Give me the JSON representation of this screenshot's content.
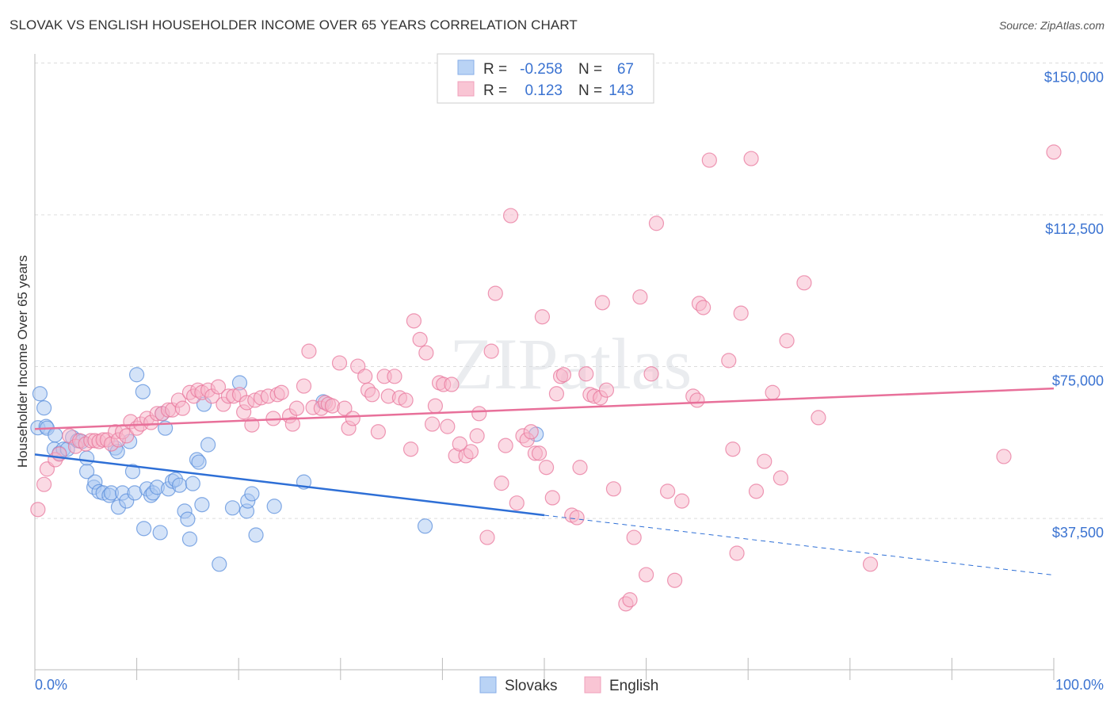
{
  "title": "SLOVAK VS ENGLISH HOUSEHOLDER INCOME OVER 65 YEARS CORRELATION CHART",
  "source": "Source: ZipAtlas.com",
  "watermark": "ZIPatlas",
  "chart_data": {
    "type": "scatter",
    "title": "SLOVAK VS ENGLISH HOUSEHOLDER INCOME OVER 65 YEARS CORRELATION CHART",
    "xlabel": "",
    "ylabel": "Householder Income Over 65 years",
    "xlim": [
      0,
      100
    ],
    "ylim_thousands": [
      0,
      150
    ],
    "x_tick_labels": {
      "left": "0.0%",
      "right": "100.0%"
    },
    "y_ticks": [
      {
        "value": 150,
        "label": "$150,000"
      },
      {
        "value": 112.5,
        "label": "$112,500"
      },
      {
        "value": 75,
        "label": "$75,000"
      },
      {
        "value": 37.5,
        "label": "$37,500"
      }
    ],
    "grid": true,
    "legend": {
      "placement": "top-center",
      "rows": [
        {
          "r_label": "R =",
          "r": "-0.258",
          "n_label": "N =",
          "n": "67"
        },
        {
          "r_label": "R =",
          "r": "0.123",
          "n_label": "N =",
          "n": "143"
        }
      ]
    },
    "series": [
      {
        "name": "Slovaks",
        "color": "#5b8fdc",
        "fill": "#a9c8f2",
        "trend": {
          "start": [
            0,
            53.3
          ],
          "solid_end": [
            50,
            38.3
          ],
          "end": [
            100,
            23.5
          ]
        },
        "points": [
          [
            0.3,
            59.9
          ],
          [
            0.5,
            68.3
          ],
          [
            0.9,
            64.8
          ],
          [
            1.1,
            60.2
          ],
          [
            1.2,
            59.8
          ],
          [
            2.0,
            58.1
          ],
          [
            1.9,
            54.6
          ],
          [
            2.4,
            53.6
          ],
          [
            2.8,
            54.6
          ],
          [
            3.2,
            54.6
          ],
          [
            3.7,
            57.5
          ],
          [
            4.2,
            56.7
          ],
          [
            4.6,
            56.5
          ],
          [
            5.1,
            52.4
          ],
          [
            5.1,
            49.1
          ],
          [
            5.8,
            45.2
          ],
          [
            5.9,
            46.5
          ],
          [
            6.3,
            44.1
          ],
          [
            6.7,
            43.8
          ],
          [
            7.3,
            43.2
          ],
          [
            7.5,
            43.8
          ],
          [
            7.9,
            54.9
          ],
          [
            8.1,
            54.0
          ],
          [
            8.2,
            40.3
          ],
          [
            8.6,
            43.8
          ],
          [
            9.0,
            41.8
          ],
          [
            9.3,
            56.5
          ],
          [
            9.6,
            49.1
          ],
          [
            9.8,
            43.8
          ],
          [
            10.0,
            73.0
          ],
          [
            10.6,
            68.8
          ],
          [
            10.7,
            35.0
          ],
          [
            11.0,
            44.8
          ],
          [
            11.4,
            43.2
          ],
          [
            11.6,
            43.8
          ],
          [
            12.0,
            45.2
          ],
          [
            12.3,
            34.0
          ],
          [
            12.5,
            63.4
          ],
          [
            12.8,
            59.8
          ],
          [
            13.1,
            44.8
          ],
          [
            13.5,
            46.7
          ],
          [
            13.8,
            47.1
          ],
          [
            14.2,
            45.7
          ],
          [
            14.7,
            39.3
          ],
          [
            15.0,
            37.3
          ],
          [
            15.2,
            32.4
          ],
          [
            15.5,
            46.1
          ],
          [
            15.9,
            52.0
          ],
          [
            16.1,
            51.4
          ],
          [
            16.4,
            40.9
          ],
          [
            16.6,
            65.7
          ],
          [
            17.0,
            55.7
          ],
          [
            18.1,
            26.2
          ],
          [
            19.4,
            40.1
          ],
          [
            20.1,
            71.0
          ],
          [
            20.8,
            39.3
          ],
          [
            20.9,
            41.8
          ],
          [
            21.3,
            43.6
          ],
          [
            21.7,
            33.4
          ],
          [
            23.5,
            40.5
          ],
          [
            26.4,
            46.5
          ],
          [
            28.3,
            66.3
          ],
          [
            38.3,
            35.6
          ],
          [
            49.2,
            58.3
          ]
        ]
      },
      {
        "name": "English",
        "color": "#e8779c",
        "fill": "#f7b6c9",
        "trend": {
          "start": [
            0,
            59.6
          ],
          "end": [
            100,
            69.6
          ]
        },
        "points": [
          [
            0.3,
            39.7
          ],
          [
            0.9,
            45.9
          ],
          [
            1.2,
            49.7
          ],
          [
            2.0,
            52.0
          ],
          [
            2.4,
            53.4
          ],
          [
            3.4,
            57.9
          ],
          [
            4.0,
            55.3
          ],
          [
            4.4,
            56.7
          ],
          [
            5.0,
            55.9
          ],
          [
            5.5,
            56.7
          ],
          [
            5.9,
            56.7
          ],
          [
            6.3,
            56.5
          ],
          [
            6.7,
            56.9
          ],
          [
            7.1,
            56.9
          ],
          [
            7.5,
            55.9
          ],
          [
            7.9,
            58.9
          ],
          [
            8.2,
            56.9
          ],
          [
            8.6,
            58.9
          ],
          [
            9.0,
            57.9
          ],
          [
            9.4,
            61.4
          ],
          [
            10.0,
            59.8
          ],
          [
            10.4,
            60.8
          ],
          [
            11.0,
            62.2
          ],
          [
            11.4,
            61.2
          ],
          [
            12.0,
            63.4
          ],
          [
            12.5,
            63.4
          ],
          [
            13.1,
            64.3
          ],
          [
            13.5,
            64.3
          ],
          [
            14.1,
            66.7
          ],
          [
            14.5,
            64.7
          ],
          [
            15.2,
            68.6
          ],
          [
            15.6,
            67.7
          ],
          [
            16.0,
            69.2
          ],
          [
            16.4,
            68.6
          ],
          [
            17.0,
            69.2
          ],
          [
            17.4,
            67.7
          ],
          [
            18.0,
            70.0
          ],
          [
            18.5,
            65.7
          ],
          [
            19.0,
            67.7
          ],
          [
            19.5,
            67.7
          ],
          [
            20.1,
            68.1
          ],
          [
            20.5,
            63.8
          ],
          [
            20.8,
            66.1
          ],
          [
            21.3,
            60.6
          ],
          [
            21.6,
            66.7
          ],
          [
            22.2,
            67.3
          ],
          [
            22.9,
            67.7
          ],
          [
            23.4,
            62.2
          ],
          [
            23.8,
            68.1
          ],
          [
            24.2,
            68.6
          ],
          [
            25.0,
            62.8
          ],
          [
            25.3,
            60.8
          ],
          [
            25.7,
            64.7
          ],
          [
            26.4,
            70.2
          ],
          [
            26.9,
            78.8
          ],
          [
            27.3,
            64.9
          ],
          [
            28.1,
            64.7
          ],
          [
            28.5,
            66.1
          ],
          [
            28.8,
            65.7
          ],
          [
            29.2,
            65.3
          ],
          [
            29.9,
            75.9
          ],
          [
            30.4,
            64.7
          ],
          [
            30.8,
            59.8
          ],
          [
            31.2,
            62.2
          ],
          [
            31.7,
            75.1
          ],
          [
            32.4,
            72.6
          ],
          [
            32.7,
            69.2
          ],
          [
            33.1,
            68.1
          ],
          [
            33.7,
            58.9
          ],
          [
            34.3,
            72.6
          ],
          [
            34.7,
            67.7
          ],
          [
            35.3,
            72.6
          ],
          [
            35.8,
            67.3
          ],
          [
            36.4,
            66.7
          ],
          [
            36.9,
            54.6
          ],
          [
            37.2,
            86.3
          ],
          [
            37.8,
            81.7
          ],
          [
            38.4,
            78.4
          ],
          [
            39.0,
            60.8
          ],
          [
            39.3,
            65.3
          ],
          [
            39.7,
            71.0
          ],
          [
            40.1,
            70.6
          ],
          [
            40.5,
            60.2
          ],
          [
            40.9,
            70.6
          ],
          [
            41.3,
            53.0
          ],
          [
            41.7,
            55.9
          ],
          [
            42.3,
            53.0
          ],
          [
            42.8,
            54.0
          ],
          [
            43.4,
            57.9
          ],
          [
            43.6,
            63.4
          ],
          [
            44.4,
            32.8
          ],
          [
            44.8,
            78.8
          ],
          [
            45.2,
            93.1
          ],
          [
            45.8,
            46.2
          ],
          [
            46.2,
            55.5
          ],
          [
            46.7,
            112.3
          ],
          [
            47.3,
            41.3
          ],
          [
            47.9,
            57.9
          ],
          [
            48.3,
            56.9
          ],
          [
            48.7,
            58.9
          ],
          [
            49.1,
            53.6
          ],
          [
            49.5,
            53.6
          ],
          [
            49.8,
            87.3
          ],
          [
            50.2,
            50.1
          ],
          [
            50.8,
            42.6
          ],
          [
            51.2,
            68.3
          ],
          [
            51.6,
            72.6
          ],
          [
            51.9,
            73.0
          ],
          [
            52.7,
            38.3
          ],
          [
            53.2,
            37.7
          ],
          [
            53.5,
            50.1
          ],
          [
            54.1,
            73.2
          ],
          [
            54.5,
            68.1
          ],
          [
            54.9,
            67.7
          ],
          [
            55.5,
            67.3
          ],
          [
            55.7,
            90.8
          ],
          [
            56.1,
            69.2
          ],
          [
            56.8,
            44.8
          ],
          [
            58.0,
            16.4
          ],
          [
            58.4,
            17.4
          ],
          [
            58.8,
            32.8
          ],
          [
            59.4,
            92.2
          ],
          [
            60.0,
            23.6
          ],
          [
            60.5,
            73.2
          ],
          [
            61.0,
            110.4
          ],
          [
            62.1,
            44.2
          ],
          [
            62.8,
            22.2
          ],
          [
            63.5,
            41.8
          ],
          [
            64.6,
            67.7
          ],
          [
            65.0,
            66.7
          ],
          [
            65.2,
            90.6
          ],
          [
            65.6,
            89.6
          ],
          [
            66.2,
            126.0
          ],
          [
            68.1,
            76.5
          ],
          [
            68.5,
            54.6
          ],
          [
            68.9,
            28.9
          ],
          [
            69.3,
            88.2
          ],
          [
            70.3,
            126.4
          ],
          [
            70.8,
            44.2
          ],
          [
            71.6,
            51.6
          ],
          [
            72.4,
            68.6
          ],
          [
            73.2,
            47.5
          ],
          [
            73.8,
            81.4
          ],
          [
            75.5,
            95.7
          ],
          [
            76.9,
            62.4
          ],
          [
            82.0,
            26.2
          ],
          [
            95.1,
            52.8
          ],
          [
            100.0,
            128.0
          ]
        ]
      }
    ]
  }
}
